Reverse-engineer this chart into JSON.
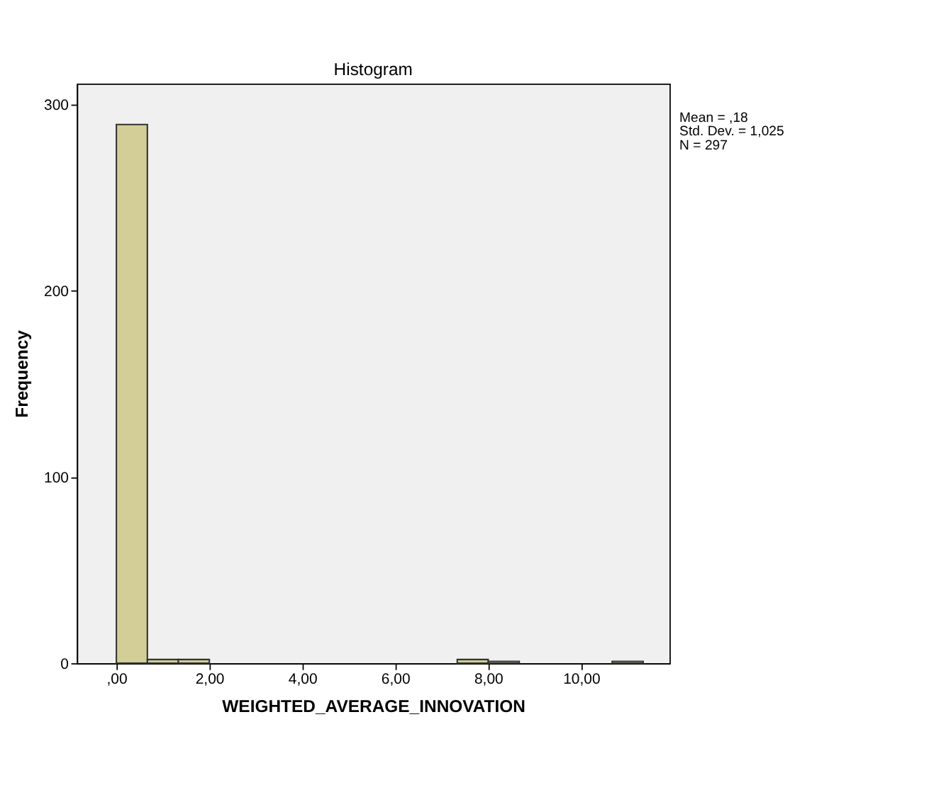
{
  "chart_data": {
    "type": "histogram",
    "title": "Histogram",
    "xlabel": "WEIGHTED_AVERAGE_INNOVATION",
    "ylabel": "Frequency",
    "bins": [
      0,
      0.6667,
      1.3333,
      2,
      2.6667,
      3.3333,
      4,
      4.6667,
      5.3333,
      6,
      6.6667,
      7.3333,
      8,
      8.6667,
      9.3333,
      10,
      10.6667,
      11.3333
    ],
    "values": [
      289,
      2,
      2,
      0,
      0,
      0,
      0,
      0,
      0,
      0,
      0,
      2,
      1,
      0,
      0,
      0,
      1
    ],
    "color": "#d3ce97",
    "xlim": [
      -0.85,
      11.9
    ],
    "ylim": [
      0,
      311
    ],
    "xticks": [
      {
        "value": 0,
        "label": ",00"
      },
      {
        "value": 2,
        "label": "2,00"
      },
      {
        "value": 4,
        "label": "4,00"
      },
      {
        "value": 6,
        "label": "6,00"
      },
      {
        "value": 8,
        "label": "8,00"
      },
      {
        "value": 10,
        "label": "10,00"
      }
    ],
    "yticks": [
      0,
      100,
      200,
      300
    ],
    "annotations": [
      "Mean = ,18",
      "Std. Dev. = 1,025",
      "N = 297"
    ],
    "grid": false
  }
}
